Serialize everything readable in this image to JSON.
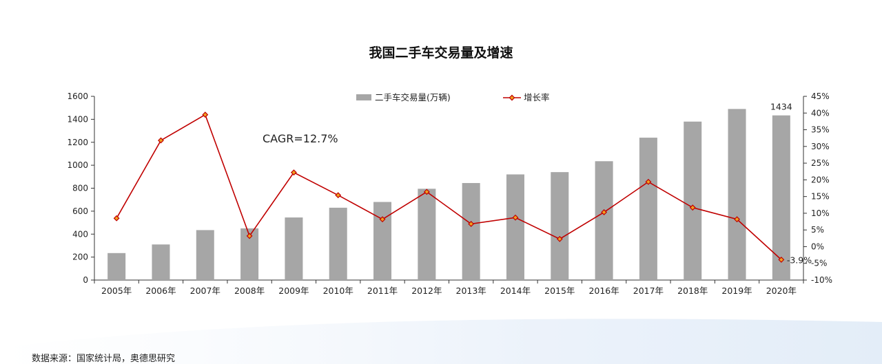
{
  "title": "我国二手车交易量及增速",
  "source": "数据来源：国家统计局，奥德思研究",
  "annotation": "CAGR=12.7%",
  "colors": {
    "bar": "#a6a6a6",
    "line": "#c00000",
    "marker_fill": "#f0a020"
  },
  "chart_data": {
    "type": "bar",
    "categories": [
      "2005年",
      "2006年",
      "2007年",
      "2008年",
      "2009年",
      "2010年",
      "2011年",
      "2012年",
      "2013年",
      "2014年",
      "2015年",
      "2016年",
      "2017年",
      "2018年",
      "2019年",
      "2020年"
    ],
    "series": [
      {
        "name": "二手车交易量(万辆)",
        "type": "bar",
        "axis": "left",
        "values": [
          235,
          310,
          435,
          450,
          545,
          630,
          680,
          795,
          845,
          920,
          940,
          1035,
          1240,
          1380,
          1490,
          1434
        ]
      },
      {
        "name": "增长率",
        "type": "line",
        "axis": "right",
        "values": [
          8.5,
          31.8,
          39.5,
          3.2,
          22.2,
          15.4,
          8.2,
          16.4,
          6.8,
          8.7,
          2.3,
          10.3,
          19.4,
          11.7,
          8.2,
          -3.9
        ]
      }
    ],
    "data_labels": [
      {
        "series": 0,
        "index": 15,
        "text": "1434"
      },
      {
        "series": 1,
        "index": 15,
        "text": "-3.9%"
      }
    ],
    "left_axis": {
      "ylim": [
        0,
        1600
      ],
      "ticks": [
        "0",
        "200",
        "400",
        "600",
        "800",
        "1000",
        "1200",
        "1400",
        "1600"
      ]
    },
    "right_axis": {
      "ylim": [
        -10,
        45
      ],
      "ticks": [
        "-10%",
        "-5%",
        "0%",
        "5%",
        "10%",
        "15%",
        "20%",
        "25%",
        "30%",
        "35%",
        "40%",
        "45%"
      ]
    },
    "legend_position": "top-center",
    "grid": false
  }
}
